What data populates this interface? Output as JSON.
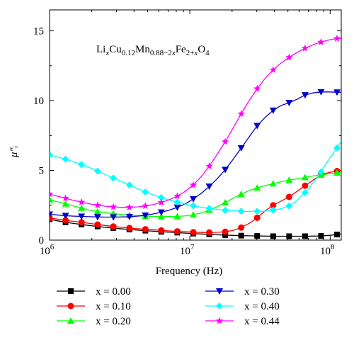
{
  "chart_data": {
    "type": "line",
    "title": "",
    "xlabel": "Frequency (Hz)",
    "ylabel": "μ″ᵢ",
    "xscale": "log",
    "xlim": [
      1000000,
      120000000
    ],
    "ylim": [
      0,
      16.5
    ],
    "x_ticks": [
      {
        "value": 1000000,
        "base": "10",
        "exp": "6"
      },
      {
        "value": 10000000,
        "base": "10",
        "exp": "7"
      },
      {
        "value": 100000000,
        "base": "10",
        "exp": "8"
      }
    ],
    "y_ticks": [
      0,
      5,
      10,
      15
    ],
    "grid": false,
    "legend_position": "below",
    "annotation": {
      "parts": [
        {
          "t": "Li",
          "s": "n"
        },
        {
          "t": "x",
          "s": "sub-i"
        },
        {
          "t": "Cu",
          "s": "n"
        },
        {
          "t": "0.12",
          "s": "sub"
        },
        {
          "t": "Mn",
          "s": "n"
        },
        {
          "t": "0.88−2",
          "s": "sub"
        },
        {
          "t": "x",
          "s": "sub-i"
        },
        {
          "t": "Fe",
          "s": "n"
        },
        {
          "t": "2+",
          "s": "sub"
        },
        {
          "t": "x",
          "s": "sub-i"
        },
        {
          "t": "O",
          "s": "n"
        },
        {
          "t": "4",
          "s": "sub"
        }
      ]
    },
    "x": [
      1000000,
      1140000,
      1300000,
      1480000,
      1690000,
      1930000,
      2200000,
      2500000,
      2850000,
      3250000,
      3710000,
      4230000,
      4820000,
      5490000,
      6260000,
      7140000,
      8140000,
      9280000,
      10580000,
      12060000,
      13750000,
      15680000,
      17870000,
      20370000,
      23230000,
      26480000,
      30190000,
      34420000,
      39240000,
      44730000,
      51000000,
      58140000,
      66280000,
      75560000,
      86140000,
      98200000,
      111950000,
      120000000
    ],
    "series": [
      {
        "name": "x = 0.00",
        "color": "#000000",
        "marker": "square",
        "values": [
          1.5,
          1.38,
          1.28,
          1.2,
          1.12,
          1.05,
          0.98,
          0.92,
          0.86,
          0.81,
          0.76,
          0.72,
          0.68,
          0.64,
          0.6,
          0.57,
          0.54,
          0.5,
          0.47,
          0.44,
          0.41,
          0.38,
          0.36,
          0.34,
          0.32,
          0.31,
          0.3,
          0.29,
          0.28,
          0.28,
          0.28,
          0.28,
          0.28,
          0.29,
          0.3,
          0.34,
          0.4,
          0.45
        ]
      },
      {
        "name": "x = 0.10",
        "color": "#ff0000",
        "marker": "circle",
        "values": [
          1.6,
          1.5,
          1.42,
          1.35,
          1.28,
          1.2,
          1.12,
          1.05,
          0.98,
          0.92,
          0.87,
          0.82,
          0.78,
          0.74,
          0.7,
          0.66,
          0.63,
          0.6,
          0.57,
          0.55,
          0.55,
          0.56,
          0.6,
          0.7,
          0.9,
          1.2,
          1.6,
          2.1,
          2.5,
          2.8,
          3.1,
          3.5,
          3.9,
          4.3,
          4.7,
          4.85,
          4.95,
          5.0
        ]
      },
      {
        "name": "x = 0.20",
        "color": "#00ff00",
        "marker": "triangle-up",
        "values": [
          2.9,
          2.75,
          2.6,
          2.45,
          2.3,
          2.15,
          2.05,
          1.97,
          1.9,
          1.84,
          1.79,
          1.75,
          1.72,
          1.7,
          1.69,
          1.69,
          1.7,
          1.74,
          1.82,
          1.95,
          2.15,
          2.4,
          2.7,
          3.0,
          3.3,
          3.55,
          3.75,
          3.9,
          4.05,
          4.18,
          4.3,
          4.4,
          4.5,
          4.6,
          4.68,
          4.75,
          4.82,
          4.85
        ]
      },
      {
        "name": "x = 0.30",
        "color": "#0000cc",
        "marker": "triangle-down",
        "values": [
          1.85,
          1.8,
          1.75,
          1.72,
          1.7,
          1.68,
          1.66,
          1.65,
          1.65,
          1.66,
          1.68,
          1.72,
          1.78,
          1.88,
          2.0,
          2.15,
          2.35,
          2.6,
          2.95,
          3.35,
          3.85,
          4.4,
          5.05,
          5.8,
          6.6,
          7.4,
          8.2,
          8.8,
          9.3,
          9.65,
          9.85,
          10.1,
          10.4,
          10.55,
          10.62,
          10.62,
          10.6,
          10.6
        ]
      },
      {
        "name": "x = 0.40",
        "color": "#00ffff",
        "marker": "diamond",
        "values": [
          6.1,
          5.95,
          5.8,
          5.62,
          5.42,
          5.2,
          4.95,
          4.7,
          4.45,
          4.2,
          3.95,
          3.7,
          3.45,
          3.25,
          3.05,
          2.87,
          2.72,
          2.58,
          2.46,
          2.36,
          2.28,
          2.2,
          2.14,
          2.1,
          2.07,
          2.06,
          2.06,
          2.08,
          2.15,
          2.25,
          2.45,
          2.85,
          3.4,
          4.1,
          4.9,
          5.8,
          6.6,
          7.1
        ]
      },
      {
        "name": "x = 0.44",
        "color": "#ff00ff",
        "marker": "star",
        "values": [
          3.3,
          3.15,
          3.0,
          2.85,
          2.72,
          2.6,
          2.5,
          2.43,
          2.38,
          2.35,
          2.35,
          2.38,
          2.45,
          2.55,
          2.7,
          2.9,
          3.15,
          3.5,
          3.95,
          4.55,
          5.3,
          6.15,
          7.05,
          8.05,
          9.05,
          10.0,
          10.85,
          11.6,
          12.2,
          12.7,
          13.1,
          13.45,
          13.75,
          14.0,
          14.2,
          14.35,
          14.45,
          14.45
        ]
      }
    ]
  }
}
